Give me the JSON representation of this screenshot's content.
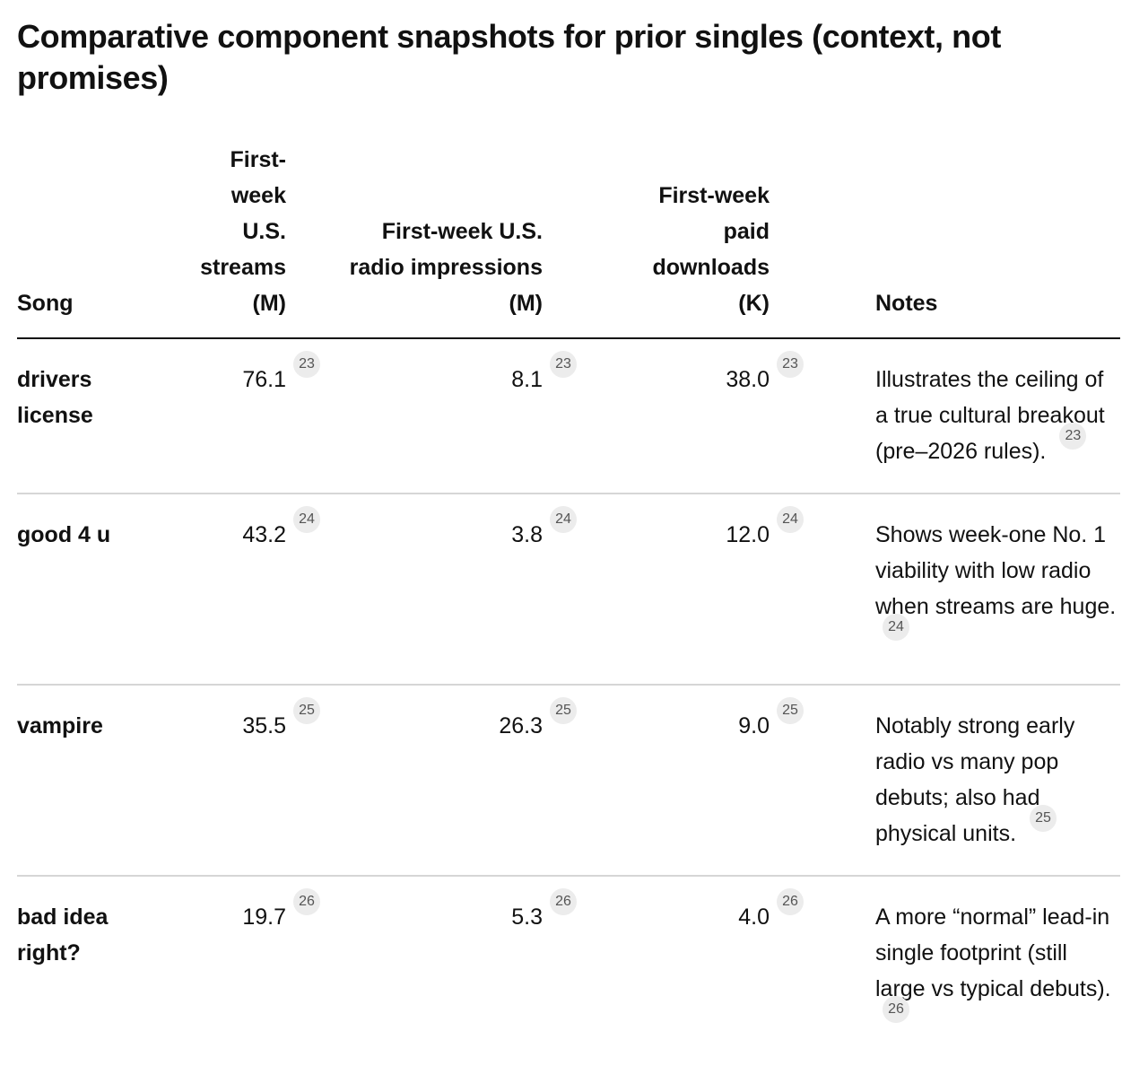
{
  "title": "Comparative component snapshots for prior singles (context, not promises)",
  "columns": {
    "song": "Song",
    "streams": "First-week U.S. streams (M)",
    "radio": "First-week U.S. radio impressions (M)",
    "downloads": "First-week paid downloads (K)",
    "notes": "Notes"
  },
  "rows": [
    {
      "song": "drivers license",
      "streams": "76.1",
      "radio": "8.1",
      "downloads": "38.0",
      "notes": "Illustrates the ceiling of a true cultural breakout (pre–2026 rules).",
      "cite": "23"
    },
    {
      "song": "good 4 u",
      "streams": "43.2",
      "radio": "3.8",
      "downloads": "12.0",
      "notes": "Shows week-one No. 1 viability with low radio when streams are huge.",
      "cite": "24"
    },
    {
      "song": "vampire",
      "streams": "35.5",
      "radio": "26.3",
      "downloads": "9.0",
      "notes": "Notably strong early radio vs many pop debuts; also had physical units.",
      "cite": "25"
    },
    {
      "song": "bad idea right?",
      "streams": "19.7",
      "radio": "5.3",
      "downloads": "4.0",
      "notes": "A more “normal” lead-in single footprint (still large vs typical debuts).",
      "cite": "26"
    }
  ]
}
